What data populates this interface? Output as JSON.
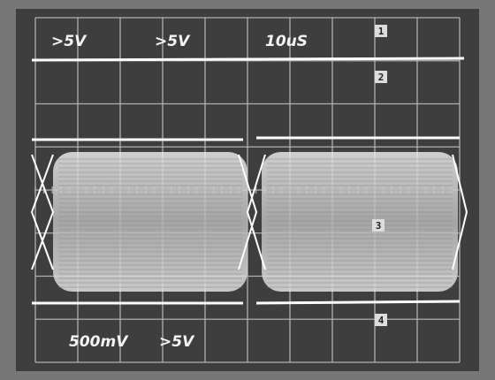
{
  "screen": {
    "top_labels": [
      ">5V",
      ">5V",
      "10uS"
    ],
    "bottom_labels": [
      "500mV",
      ">5V"
    ],
    "markers": [
      "1",
      "2",
      "3",
      "4"
    ]
  }
}
